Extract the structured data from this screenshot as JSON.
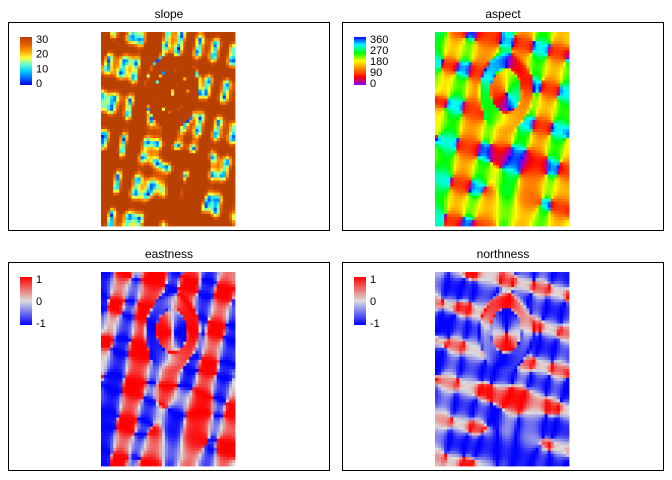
{
  "chart_data": [
    {
      "type": "heatmap",
      "title": "slope",
      "legend": {
        "placement": "top-left",
        "ticks": [
          "30",
          "20",
          "10",
          "0"
        ],
        "range": [
          0,
          35
        ]
      },
      "colormap": [
        "#0000dd",
        "#0066ff",
        "#00ccff",
        "#66ffcc",
        "#ffff33",
        "#ff9900",
        "#e25a00",
        "#b84000"
      ]
    },
    {
      "type": "heatmap",
      "title": "aspect",
      "legend": {
        "placement": "top-left",
        "ticks": [
          "360",
          "270",
          "180",
          "90",
          "0"
        ],
        "range": [
          0,
          360
        ]
      },
      "colormap": [
        "#8000ff",
        "#ff0000",
        "#ff8000",
        "#ffff00",
        "#00ff00",
        "#00ffff",
        "#0000ff"
      ]
    },
    {
      "type": "heatmap",
      "title": "eastness",
      "legend": {
        "placement": "top-left",
        "ticks": [
          "1",
          "0",
          "-1"
        ],
        "range": [
          -1,
          1
        ]
      },
      "colormap": [
        "#0000ff",
        "#dddddd",
        "#ff0000"
      ]
    },
    {
      "type": "heatmap",
      "title": "northness",
      "legend": {
        "placement": "top-left",
        "ticks": [
          "1",
          "0",
          "-1"
        ],
        "range": [
          -1,
          1
        ]
      },
      "colormap": [
        "#0000ff",
        "#dddddd",
        "#ff0000"
      ]
    }
  ]
}
